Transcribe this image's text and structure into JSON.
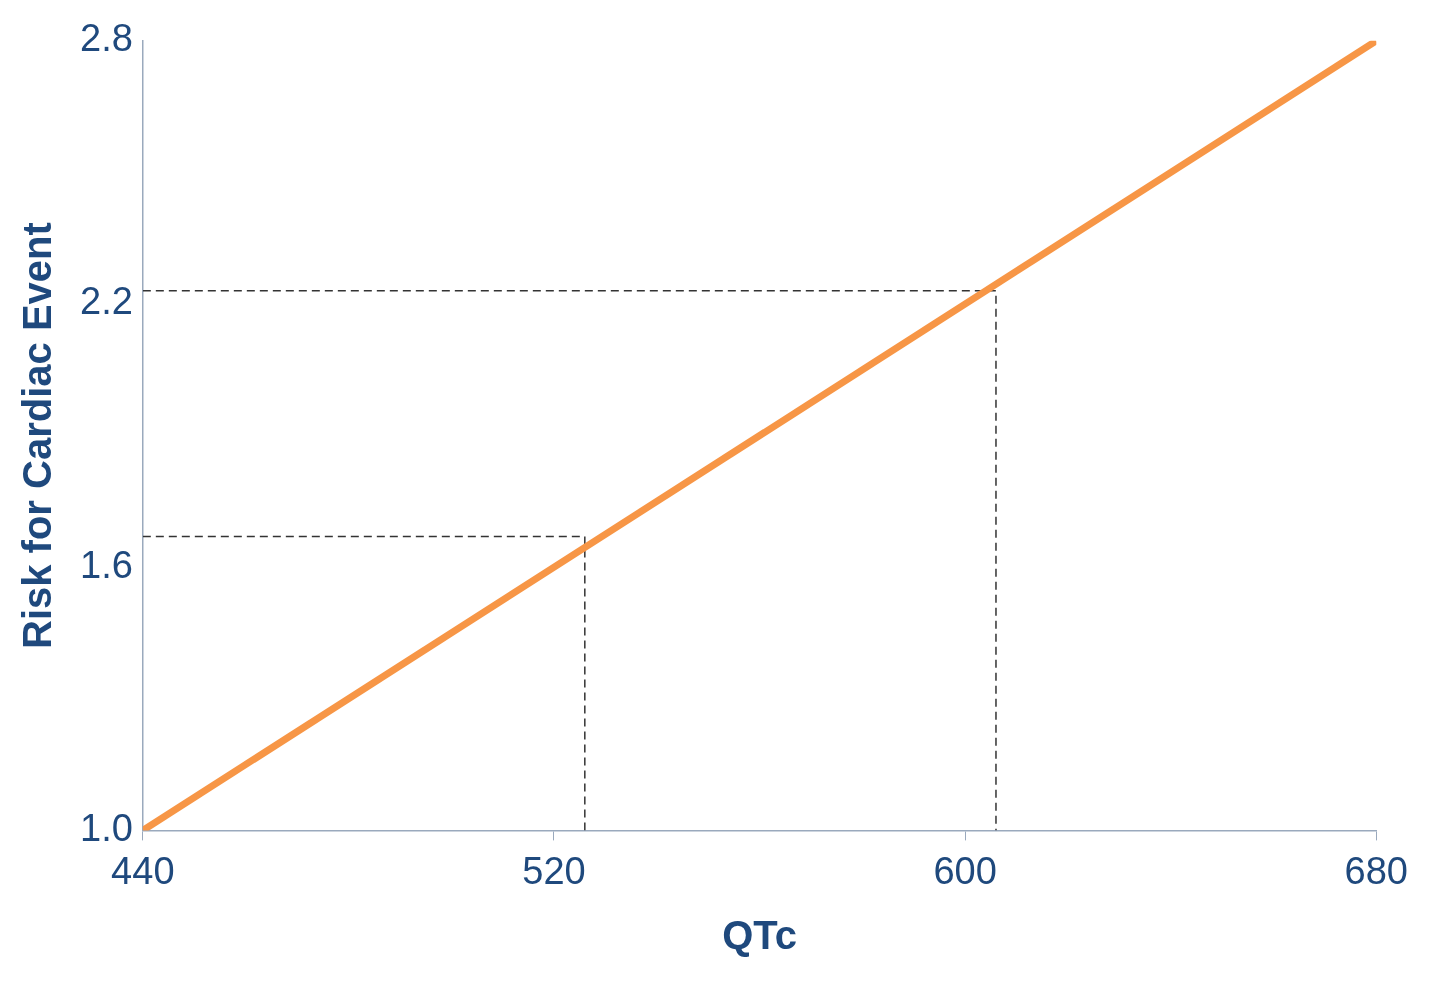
{
  "chart_data": {
    "type": "line",
    "xlabel": "QTc",
    "ylabel": "Risk for Cardiac Event",
    "xlim": [
      440,
      680
    ],
    "xticks": [
      440,
      520,
      600,
      680
    ],
    "ylim": [
      1.0,
      2.8
    ],
    "yticks": [
      {
        "value": 1.0,
        "label": "1.0"
      },
      1.6,
      2.2,
      2.8
    ],
    "grid": false,
    "legend": false,
    "marker": "none",
    "series": [
      {
        "color": "#f79646",
        "x": [
          440,
          680
        ],
        "values": [
          1.0,
          2.8
        ],
        "line_style": "solid"
      },
      {
        "color": "#333333",
        "x": [
          440,
          526,
          526
        ],
        "values": [
          1.67,
          1.67,
          1.0
        ],
        "line_style": "dashed"
      },
      {
        "color": "#333333",
        "x": [
          440,
          606,
          606
        ],
        "values": [
          2.23,
          2.23,
          1.0
        ],
        "line_style": "dashed"
      }
    ]
  }
}
